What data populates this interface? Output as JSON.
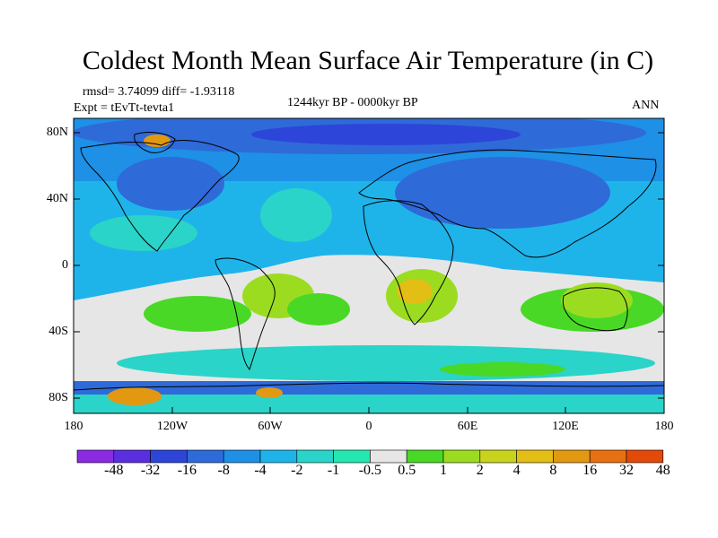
{
  "title": "Coldest Month Mean Surface Air Temperature (in C)",
  "stats": {
    "rmsd_diff": "rmsd= 3.74099 diff= -1.93118",
    "experiment": "Expt = tEvTt-tevta1",
    "period": "1244kyr BP - 0000kyr BP",
    "season": "ANN"
  },
  "axes": {
    "lat_labels": [
      "80N",
      "40N",
      "0",
      "40S",
      "80S"
    ],
    "lon_labels": [
      "180",
      "120W",
      "60W",
      "0",
      "60E",
      "120E",
      "180"
    ]
  },
  "colorbar": {
    "colors": [
      "#8a2be2",
      "#5a2fe0",
      "#2d45d8",
      "#2f6ad9",
      "#1e90e6",
      "#1eb4ea",
      "#2ad4c8",
      "#25e8b0",
      "#e6e6e6",
      "#4ad826",
      "#9bdc21",
      "#c8d41c",
      "#e3be14",
      "#e39812",
      "#e87010",
      "#e34a0a"
    ],
    "labels": [
      "-48",
      "-32",
      "-16",
      "-8",
      "-4",
      "-2",
      "-1",
      "-0.5",
      "0.5",
      "1",
      "2",
      "4",
      "8",
      "16",
      "32",
      "48"
    ]
  },
  "map_colors": {
    "ocean_base": "#1eb4ea",
    "north_mid": "#1e90e6",
    "cold_blue": "#2f6ad9",
    "deep_blue": "#2d45d8",
    "teal": "#2ad4c8",
    "near_zero": "#e6e6e6",
    "green": "#4ad826",
    "lime": "#9bdc21",
    "yellow_green": "#c8d41c",
    "orange_yellow": "#e3be14",
    "orange": "#e39812",
    "coast": "#000000"
  }
}
